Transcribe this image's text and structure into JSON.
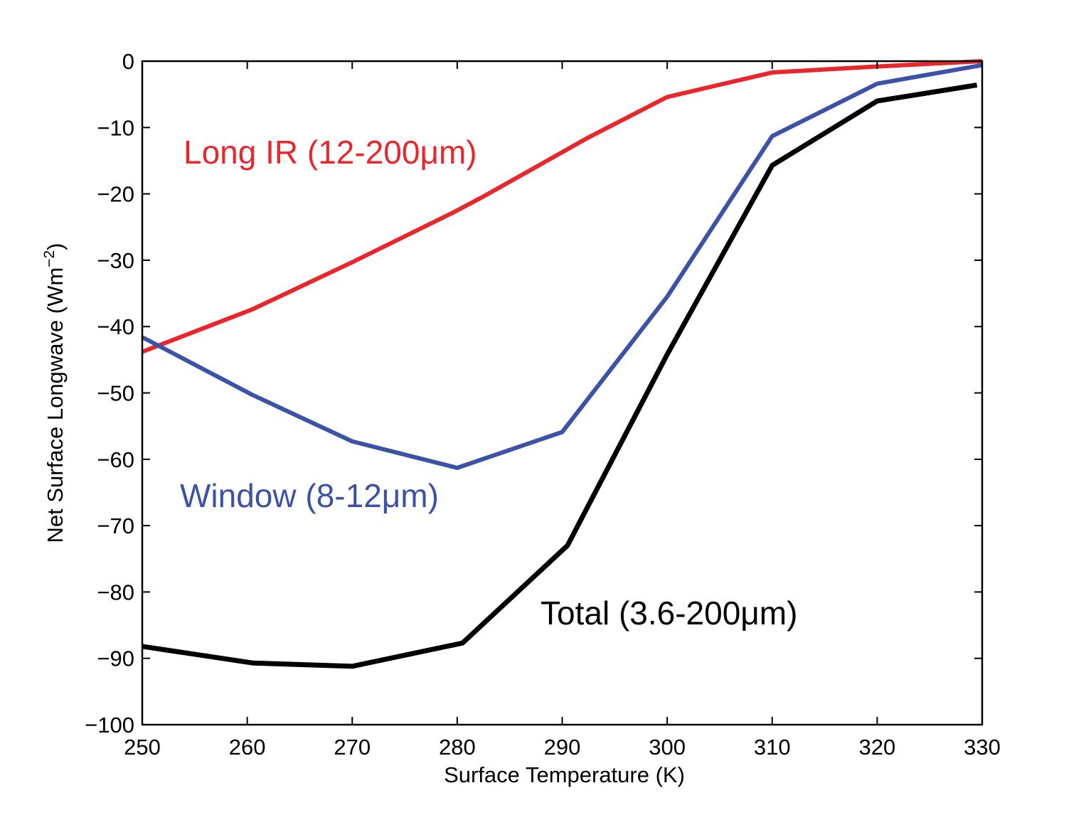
{
  "chart_data": {
    "type": "line",
    "title": "",
    "xlabel": "Surface Temperature (K)",
    "ylabel": "Net Surface Longwave (Wm",
    "ylabel_superscript": "−2",
    "ylabel_close": ")",
    "xlim": [
      250,
      330
    ],
    "ylim": [
      -100,
      0
    ],
    "x_ticks": [
      250,
      260,
      270,
      280,
      290,
      300,
      310,
      320,
      330
    ],
    "y_ticks": [
      0,
      -10,
      -20,
      -30,
      -40,
      -50,
      -60,
      -70,
      -80,
      -90,
      -100
    ],
    "x_tick_labels": [
      "250",
      "260",
      "270",
      "280",
      "290",
      "300",
      "310",
      "320",
      "330"
    ],
    "y_tick_labels": [
      "0",
      "−10",
      "−20",
      "−30",
      "−40",
      "−50",
      "−60",
      "−70",
      "−80",
      "−90",
      "−100"
    ],
    "grid": false,
    "legend": "none (inline series labels)",
    "series": [
      {
        "name": "Long IR (12-200μm)",
        "color": "#e8262b",
        "x": [
          250,
          260.5,
          270,
          279.5,
          282.5,
          292.5,
          300,
          310,
          320,
          330
        ],
        "y": [
          -43.8,
          -37.4,
          -30.3,
          -22.9,
          -20.4,
          -11.5,
          -5.4,
          -1.7,
          -0.8,
          0
        ]
      },
      {
        "name": "Window (8-12μm)",
        "color": "#3c52a6",
        "x": [
          250,
          260.5,
          270,
          280,
          290,
          300,
          310,
          320,
          330
        ],
        "y": [
          -41.6,
          -50.3,
          -57.3,
          -61.3,
          -55.9,
          -35.5,
          -11.3,
          -3.4,
          -0.6
        ]
      },
      {
        "name": "Total (3.6-200μm)",
        "color": "#000000",
        "x": [
          250,
          260.5,
          270,
          280.5,
          290.5,
          300,
          310,
          320,
          329.5
        ],
        "y": [
          -88.2,
          -90.7,
          -91.2,
          -87.7,
          -73.0,
          -44.2,
          -15.7,
          -6.0,
          -3.6
        ]
      }
    ]
  }
}
